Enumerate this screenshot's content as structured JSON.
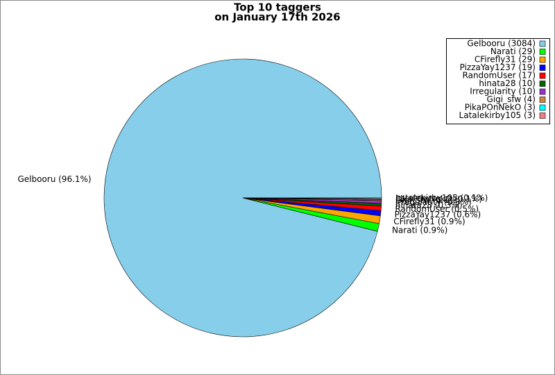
{
  "chart_data": {
    "type": "pie",
    "title": "Top 10 taggers",
    "subtitle": "on January 17th 2026",
    "categories": [
      "Gelbooru",
      "Narati",
      "CFirefly31",
      "PizzaYay1237",
      "RandomUser",
      "hinata28",
      "Irregularity",
      "Gigi_sfw",
      "PikaPOnNekO",
      "Latalekirby105"
    ],
    "values": [
      3084,
      29,
      29,
      19,
      17,
      10,
      10,
      4,
      3,
      3
    ],
    "legend_labels": [
      "Gelbooru (3084)",
      "Narati (29)",
      "CFirefly31 (29)",
      "PizzaYay1237 (19)",
      "RandomUser (17)",
      "hinata28 (10)",
      "Irregularity (10)",
      "Gigi_sfw (4)",
      "PikaPOnNekO (3)",
      "Latalekirby105 (3)"
    ],
    "value_labels": [
      "Gelbooru (96.1%)",
      "Narati (0.9%)",
      "CFirefly31 (0.9%)",
      "PizzaYay1237 (0.6%)",
      "RandomUser (0.5%)",
      "hinata28 (0.3%)",
      "Irregularity (0.3%)",
      "Gigi_sfw (0.1%)",
      "PikaPOnNekO (0.1%)",
      "Latalekirby105 (0.1%)"
    ],
    "colors": [
      "#87ceeb",
      "#00ff00",
      "#ffa500",
      "#0000ff",
      "#ff0000",
      "#006400",
      "#9932cc",
      "#cd853f",
      "#00ffff",
      "#f08080"
    ],
    "legend": "upper right"
  }
}
